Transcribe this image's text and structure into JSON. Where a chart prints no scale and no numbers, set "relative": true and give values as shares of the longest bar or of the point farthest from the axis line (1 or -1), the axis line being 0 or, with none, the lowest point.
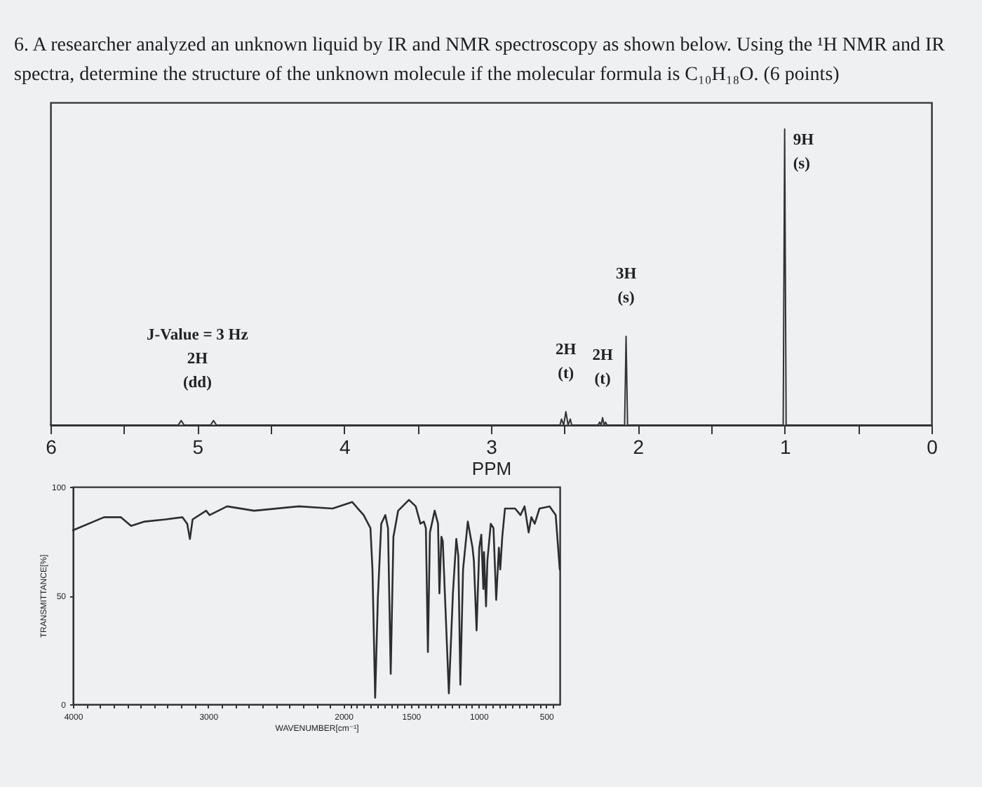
{
  "chart_data": [
    {
      "type": "line",
      "title": "6. A researcher analyzed an unknown liquid by IR and NMR spectroscopy as shown below. Using the ¹H NMR and IR spectra, determine the structure of the unknown molecule if the molecular formula is C₁₀H₁₈O. (6 points)",
      "xlabel": "PPM",
      "relative": true,
      "tick_labels": "x",
      "x": [
        6.0,
        5.13,
        5.11,
        5.09,
        4.91,
        4.89,
        4.87,
        2.53,
        2.52,
        2.505,
        2.49,
        2.475,
        2.46,
        2.45,
        2.27,
        2.26,
        2.25,
        2.24,
        2.23,
        2.22,
        2.21,
        2.09,
        2.08,
        2.07,
        1.01,
        1.0,
        0.99,
        0.0
      ],
      "series": [
        {
          "color": "#333333",
          "values": [
            0,
            0,
            0.015,
            0,
            0,
            0.015,
            0,
            0,
            0.02,
            0,
            0.045,
            0,
            0.02,
            0,
            0,
            0.01,
            0,
            0.025,
            0,
            0.01,
            0,
            0,
            0.3,
            0,
            0,
            1,
            0,
            0
          ]
        }
      ],
      "xlim": [
        6,
        0
      ],
      "xticks": [
        6,
        {
          "value": 5.5,
          "label": null
        },
        5,
        {
          "value": 4.5,
          "label": null
        },
        4,
        {
          "value": 3.5,
          "label": null
        },
        3,
        {
          "value": 2.5,
          "label": null
        },
        2,
        {
          "value": 1.5,
          "label": null
        },
        1,
        {
          "value": 0.5,
          "label": null
        },
        0
      ],
      "annotations": [
        {
          "text": "J-Value = 3 Hz\n2H\n(dd)",
          "x": 5.0,
          "y": 0.015
        },
        {
          "text": "2H\n(t)",
          "x": 2.49,
          "y": 0.045
        },
        {
          "text": "2H\n(t)",
          "x": 2.24,
          "y": 0.025
        },
        {
          "text": "3H\n(s)",
          "x": 2.08,
          "y": 0.3
        },
        {
          "text": "9H\n(s)",
          "x": 1.0,
          "y": 1
        }
      ]
    },
    {
      "type": "line",
      "xlabel": "WAVENUMBER[cm⁻¹]",
      "ylabel": "TRANSMITTANCE[%]",
      "x": [
        4000,
        3770,
        3645,
        3570,
        3470,
        3315,
        3190,
        3155,
        3135,
        3115,
        3015,
        2990,
        2860,
        2660,
        2330,
        2080,
        1935,
        1850,
        1800,
        1785,
        1765,
        1745,
        1720,
        1690,
        1670,
        1650,
        1630,
        1595,
        1515,
        1465,
        1430,
        1405,
        1390,
        1375,
        1360,
        1325,
        1300,
        1290,
        1275,
        1265,
        1245,
        1220,
        1190,
        1165,
        1150,
        1135,
        1115,
        1080,
        1045,
        1035,
        1015,
        995,
        980,
        965,
        960,
        945,
        935,
        910,
        890,
        870,
        850,
        840,
        825,
        805,
        730,
        690,
        660,
        630,
        610,
        585,
        550,
        475,
        430,
        400
      ],
      "series": [
        {
          "color": "#2e2e2e",
          "values": [
            80,
            86,
            86,
            82,
            84,
            85,
            86,
            83,
            76,
            85,
            89,
            87,
            91,
            89,
            91,
            90,
            93,
            87,
            81,
            62,
            3,
            49,
            83,
            87,
            81,
            14,
            77,
            89,
            94,
            91,
            83,
            84,
            81,
            24,
            79,
            89,
            83,
            51,
            77,
            75,
            44,
            5,
            51,
            76,
            68,
            9,
            62,
            84,
            72,
            66,
            34,
            72,
            78,
            53,
            70,
            45,
            66,
            83,
            81,
            48,
            72,
            62,
            77,
            90,
            90,
            87,
            91,
            79,
            86,
            83,
            90,
            91,
            87,
            62
          ]
        }
      ],
      "xlim": [
        4000,
        400
      ],
      "xticks": [
        4000,
        {
          "value": 3900,
          "label": null
        },
        {
          "value": 3800,
          "label": null
        },
        {
          "value": 3700,
          "label": null
        },
        {
          "value": 3600,
          "label": null
        },
        {
          "value": 3500,
          "label": null
        },
        {
          "value": 3400,
          "label": null
        },
        {
          "value": 3300,
          "label": null
        },
        {
          "value": 3200,
          "label": null
        },
        {
          "value": 3100,
          "label": null
        },
        3000,
        {
          "value": 2900,
          "label": null
        },
        {
          "value": 2800,
          "label": null
        },
        {
          "value": 2700,
          "label": null
        },
        {
          "value": 2600,
          "label": null
        },
        {
          "value": 2500,
          "label": null
        },
        {
          "value": 2400,
          "label": null
        },
        {
          "value": 2300,
          "label": null
        },
        {
          "value": 2200,
          "label": null
        },
        {
          "value": 2100,
          "label": null
        },
        2000,
        {
          "value": 1950,
          "label": null
        },
        {
          "value": 1900,
          "label": null
        },
        {
          "value": 1850,
          "label": null
        },
        {
          "value": 1800,
          "label": null
        },
        {
          "value": 1750,
          "label": null
        },
        {
          "value": 1700,
          "label": null
        },
        {
          "value": 1650,
          "label": null
        },
        {
          "value": 1600,
          "label": null
        },
        {
          "value": 1550,
          "label": null
        },
        1500,
        {
          "value": 1450,
          "label": null
        },
        {
          "value": 1400,
          "label": null
        },
        {
          "value": 1350,
          "label": null
        },
        {
          "value": 1300,
          "label": null
        },
        {
          "value": 1250,
          "label": null
        },
        {
          "value": 1200,
          "label": null
        },
        {
          "value": 1150,
          "label": null
        },
        {
          "value": 1100,
          "label": null
        },
        {
          "value": 1050,
          "label": null
        },
        1000,
        {
          "value": 950,
          "label": null
        },
        {
          "value": 900,
          "label": null
        },
        {
          "value": 850,
          "label": null
        },
        {
          "value": 800,
          "label": null
        },
        {
          "value": 750,
          "label": null
        },
        {
          "value": 700,
          "label": null
        },
        {
          "value": 650,
          "label": null
        },
        {
          "value": 600,
          "label": null
        },
        {
          "value": 550,
          "label": null
        },
        500,
        {
          "value": 450,
          "label": null
        }
      ],
      "ylim": [
        0,
        100
      ],
      "yticks": [
        0,
        50,
        100
      ]
    }
  ]
}
